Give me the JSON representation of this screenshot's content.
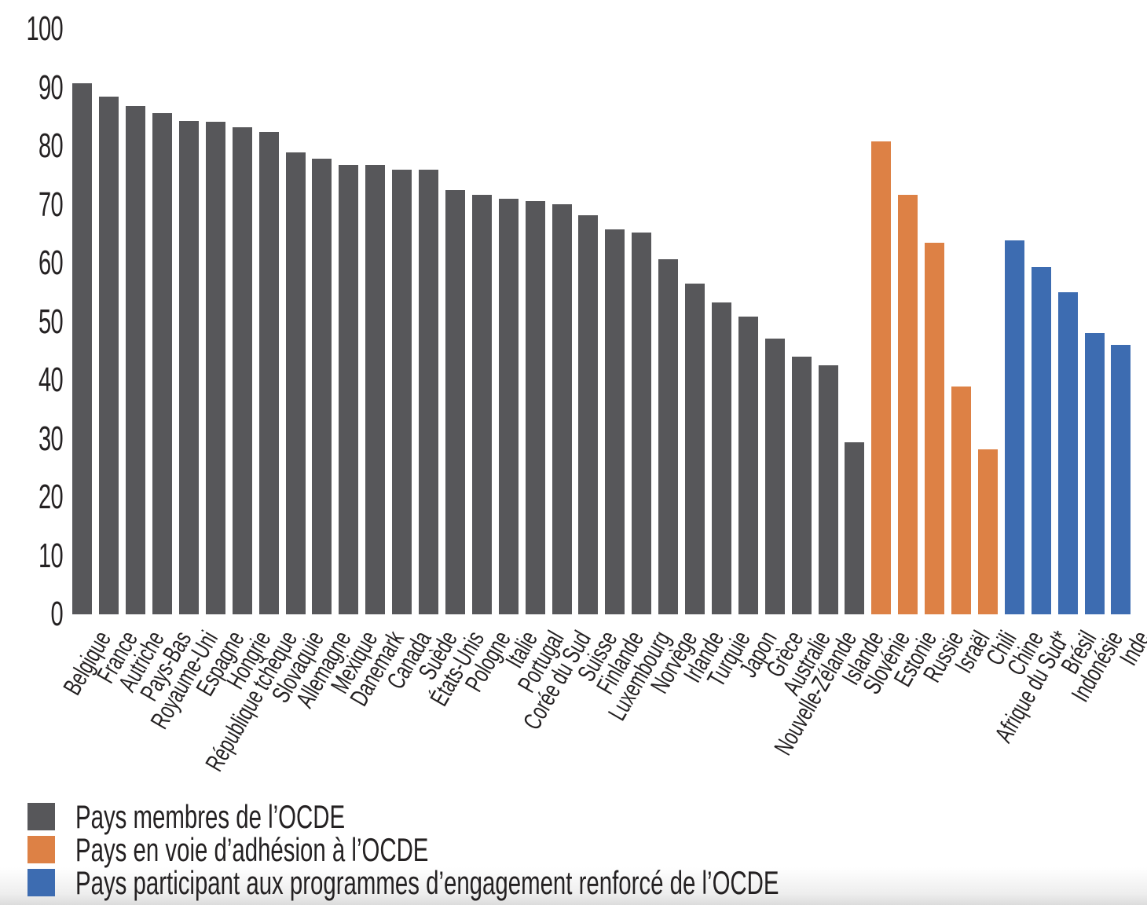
{
  "chart_data": {
    "type": "bar",
    "title": "",
    "xlabel": "",
    "ylabel": "",
    "ylim": [
      0,
      100
    ],
    "yticks": [
      0,
      10,
      20,
      30,
      40,
      50,
      60,
      70,
      80,
      90,
      100
    ],
    "grid": false,
    "legend_position": "bottom-left",
    "groups": {
      "member": {
        "color": "#57575a"
      },
      "accession": {
        "color": "#dd8145"
      },
      "engagement": {
        "color": "#3d6cb1"
      }
    },
    "bars": [
      {
        "label": "Belgique",
        "value": 90.8,
        "group": "member"
      },
      {
        "label": "France",
        "value": 88.4,
        "group": "member"
      },
      {
        "label": "Autriche",
        "value": 86.8,
        "group": "member"
      },
      {
        "label": "Pays-Bas",
        "value": 85.7,
        "group": "member"
      },
      {
        "label": "Royaume-Uni",
        "value": 84.3,
        "group": "member"
      },
      {
        "label": "Espagne",
        "value": 84.1,
        "group": "member"
      },
      {
        "label": "Hongrie",
        "value": 83.2,
        "group": "member"
      },
      {
        "label": "République tchèque",
        "value": 82.4,
        "group": "member"
      },
      {
        "label": "Slovaquie",
        "value": 78.9,
        "group": "member"
      },
      {
        "label": "Allemagne",
        "value": 77.9,
        "group": "member"
      },
      {
        "label": "Mexique",
        "value": 76.8,
        "group": "member"
      },
      {
        "label": "Danemark",
        "value": 76.8,
        "group": "member"
      },
      {
        "label": "Canada",
        "value": 76.0,
        "group": "member"
      },
      {
        "label": "Suède",
        "value": 76.0,
        "group": "member"
      },
      {
        "label": "États-Unis",
        "value": 72.5,
        "group": "member"
      },
      {
        "label": "Pologne",
        "value": 71.7,
        "group": "member"
      },
      {
        "label": "Italie",
        "value": 71.0,
        "group": "member"
      },
      {
        "label": "Portugal",
        "value": 70.6,
        "group": "member"
      },
      {
        "label": "Corée du Sud",
        "value": 70.1,
        "group": "member"
      },
      {
        "label": "Suisse",
        "value": 68.2,
        "group": "member"
      },
      {
        "label": "Finlande",
        "value": 65.8,
        "group": "member"
      },
      {
        "label": "Luxembourg",
        "value": 65.3,
        "group": "member"
      },
      {
        "label": "Norvège",
        "value": 60.7,
        "group": "member"
      },
      {
        "label": "Irlande",
        "value": 56.5,
        "group": "member"
      },
      {
        "label": "Turquie",
        "value": 53.3,
        "group": "member"
      },
      {
        "label": "Japon",
        "value": 50.9,
        "group": "member"
      },
      {
        "label": "Grèce",
        "value": 47.1,
        "group": "member"
      },
      {
        "label": "Australie",
        "value": 44.0,
        "group": "member"
      },
      {
        "label": "Nouvelle-Zélande",
        "value": 42.6,
        "group": "member"
      },
      {
        "label": "Islande",
        "value": 29.4,
        "group": "member"
      },
      {
        "label": "Slovénie",
        "value": 80.8,
        "group": "accession"
      },
      {
        "label": "Estonie",
        "value": 71.7,
        "group": "accession"
      },
      {
        "label": "Russie",
        "value": 63.5,
        "group": "accession"
      },
      {
        "label": "Israël",
        "value": 38.9,
        "group": "accession"
      },
      {
        "label": "Chili",
        "value": 28.2,
        "group": "accession"
      },
      {
        "label": "Chine",
        "value": 63.9,
        "group": "engagement"
      },
      {
        "label": "Afrique du Sud*",
        "value": 59.3,
        "group": "engagement"
      },
      {
        "label": "Brésil",
        "value": 55.0,
        "group": "engagement"
      },
      {
        "label": "Indonésie",
        "value": 48.1,
        "group": "engagement"
      },
      {
        "label": "Inde",
        "value": 46.0,
        "group": "engagement"
      }
    ]
  },
  "legend": {
    "entries": [
      {
        "group": "member",
        "label": "Pays membres de l’OCDE"
      },
      {
        "group": "accession",
        "label": "Pays en voie d’adhésion à l’OCDE"
      },
      {
        "group": "engagement",
        "label": "Pays participant aux programmes d’engagement renforcé de l’OCDE"
      }
    ]
  }
}
